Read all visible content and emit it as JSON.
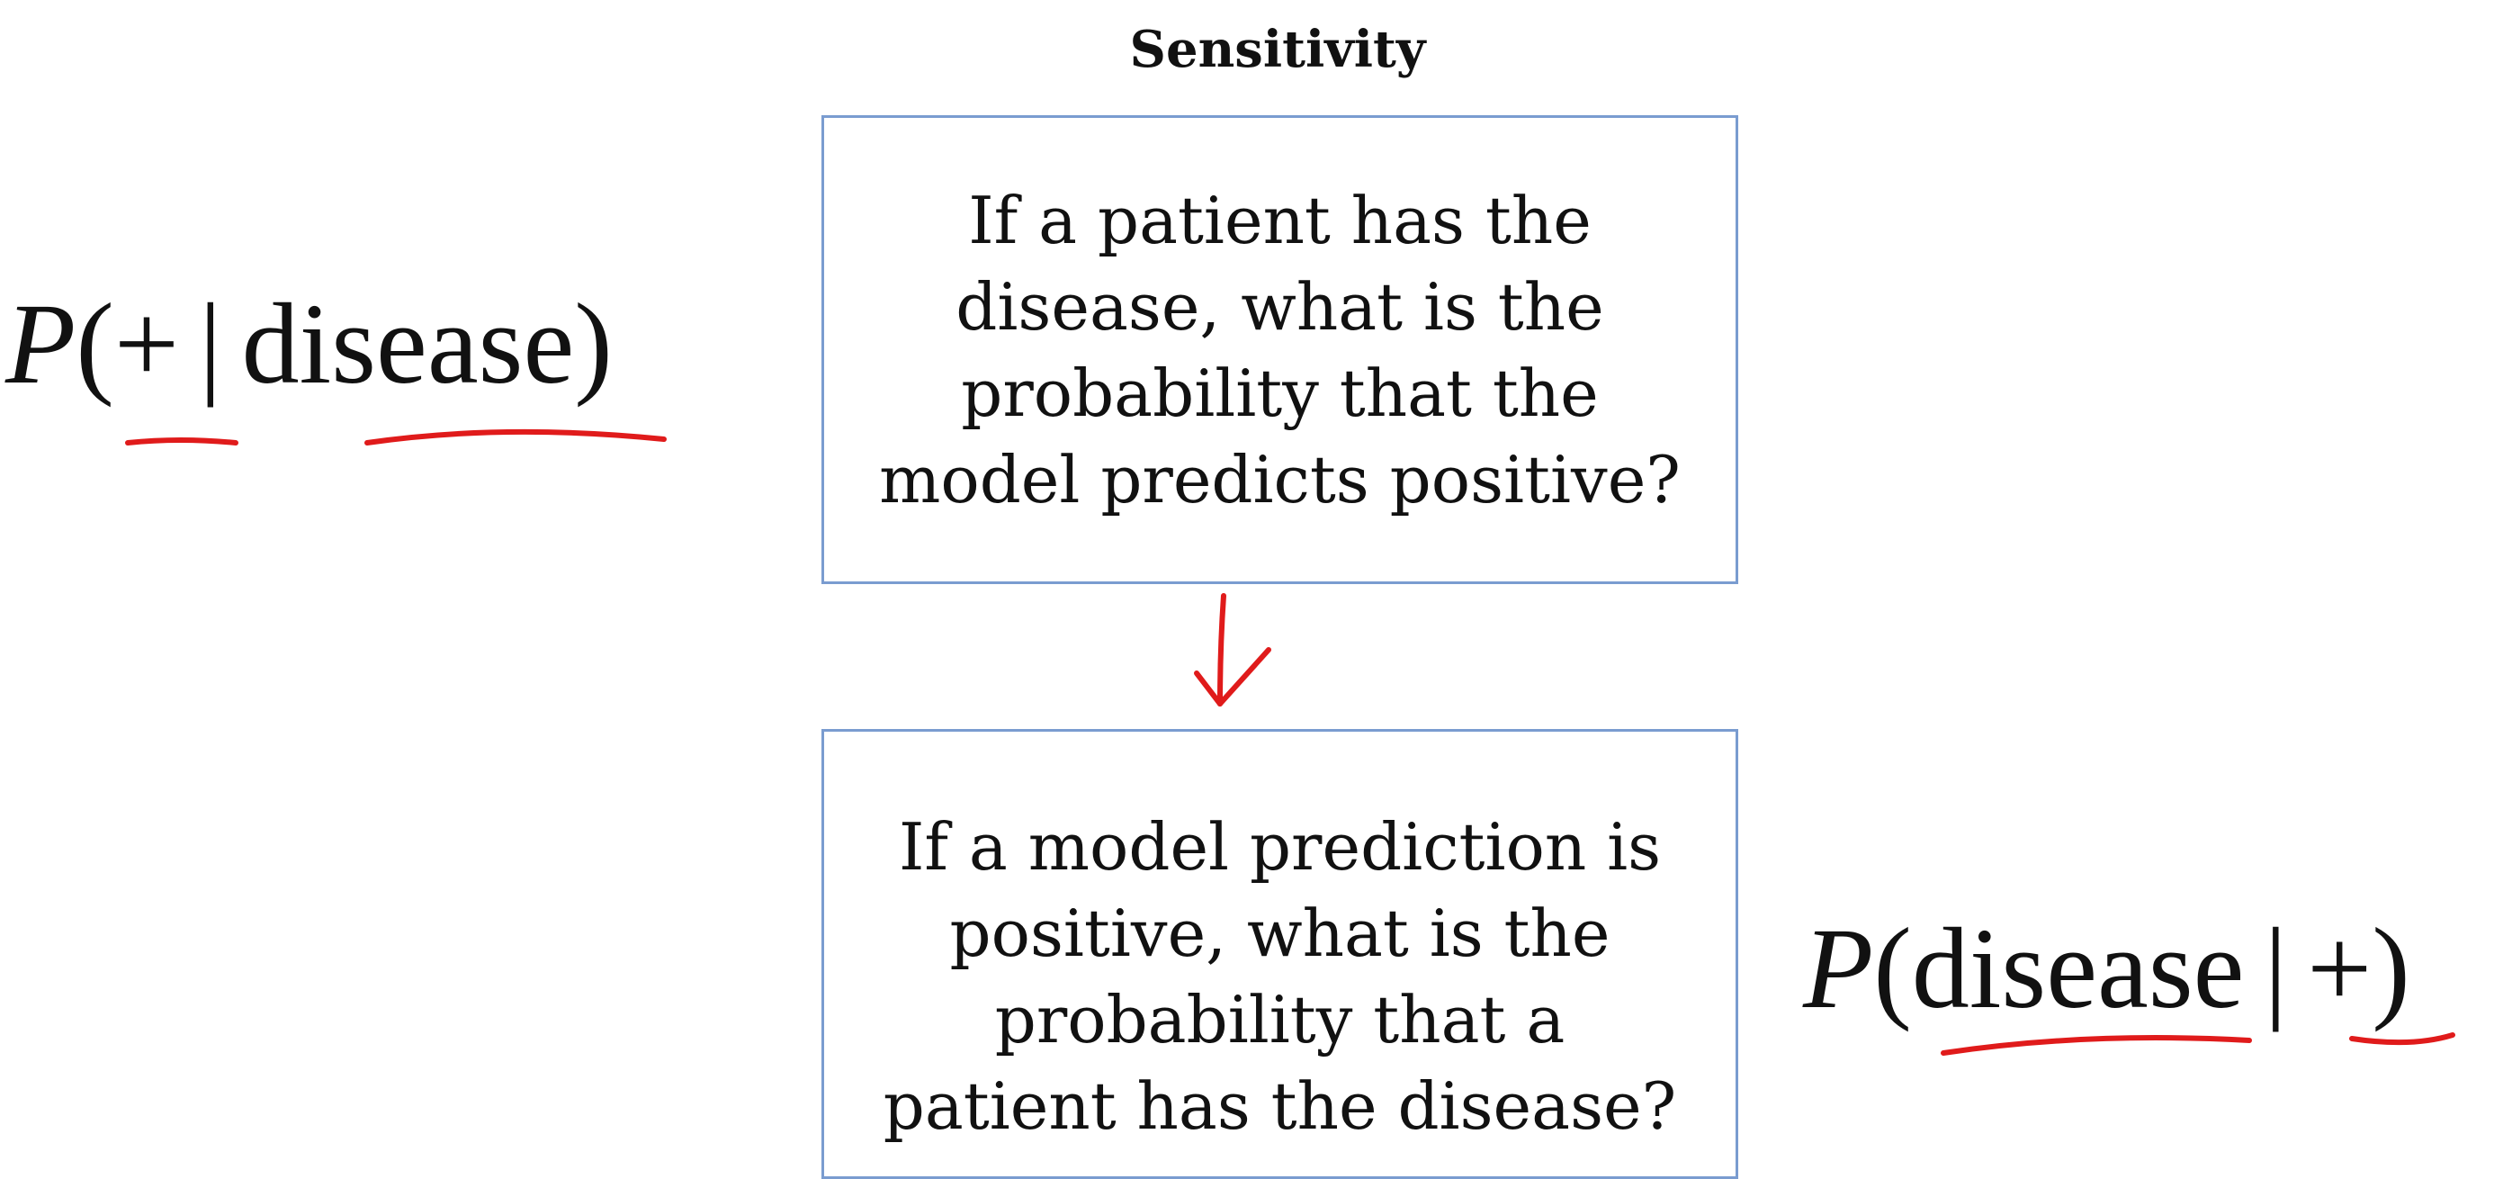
{
  "title": "Sensitivity",
  "top_box": {
    "lines": [
      "If a patient has the",
      "disease, what is the",
      "probability that the",
      "model predicts positive?"
    ]
  },
  "bottom_box": {
    "lines": [
      "If a model prediction is",
      "positive, what is the",
      "probability that a",
      "patient has the disease?"
    ]
  },
  "formula_top": {
    "p": "P",
    "open": "(",
    "left": "+",
    "bar": "|",
    "right": "disease",
    "close": ")"
  },
  "formula_bottom": {
    "p": "P",
    "open": "(",
    "left": "disease",
    "bar": "|",
    "right": "+",
    "close": ")"
  },
  "colors": {
    "box_border": "#7a9cd0",
    "annotation": "#e01b1b",
    "text": "#111111"
  }
}
